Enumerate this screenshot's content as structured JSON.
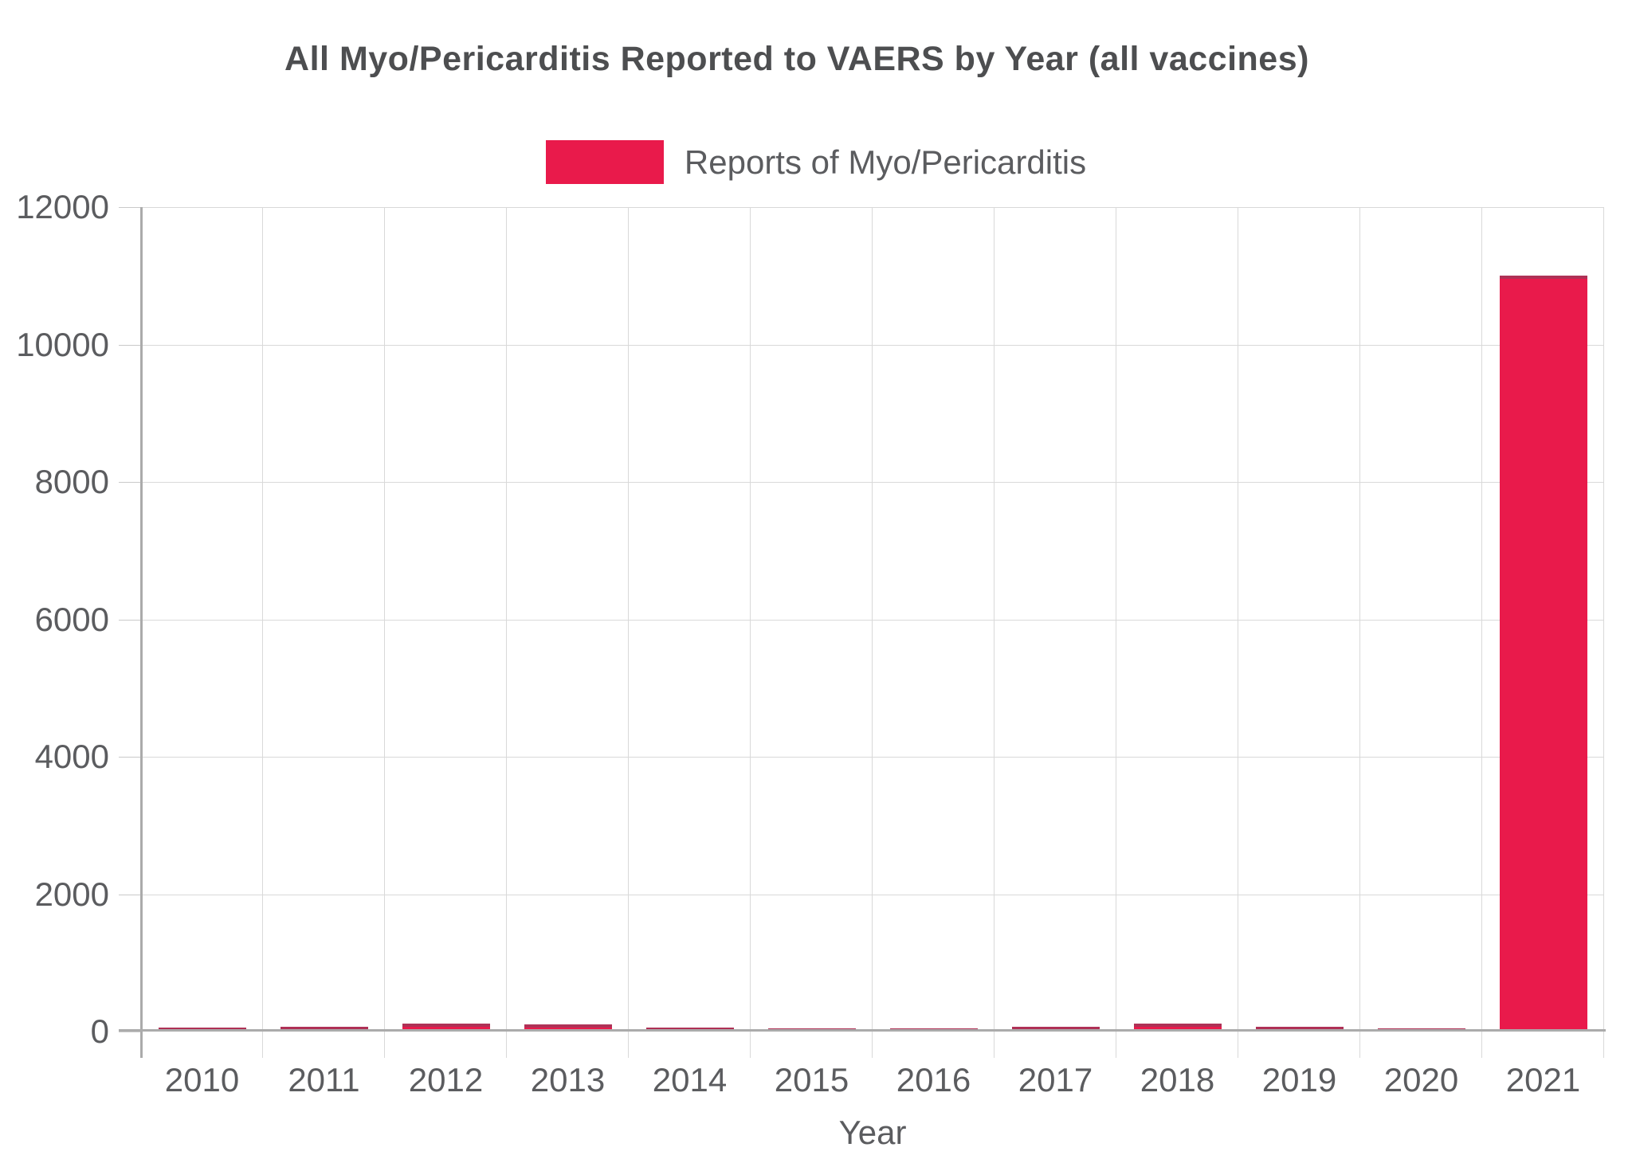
{
  "chart_data": {
    "type": "bar",
    "title": "All Myo/Pericarditis Reported to VAERS by Year (all vaccines)",
    "legend_label": "Reports of Myo/Pericarditis",
    "xlabel": "Year",
    "ylabel": "",
    "categories": [
      "2010",
      "2011",
      "2012",
      "2013",
      "2014",
      "2015",
      "2016",
      "2017",
      "2018",
      "2019",
      "2020",
      "2021"
    ],
    "values": [
      60,
      75,
      115,
      105,
      60,
      35,
      45,
      70,
      115,
      75,
      45,
      11000
    ],
    "ylim": [
      0,
      12000
    ],
    "ytick_step": 2000,
    "ytick_labels": [
      "0",
      "2000",
      "4000",
      "6000",
      "8000",
      "10000",
      "12000"
    ],
    "grid": true,
    "legend_position": "top-center",
    "colors": {
      "bar": "#E91A4B",
      "bar_top_edge": "#AF3156",
      "grid": "#D9D9D9",
      "axis": "#ABABAB",
      "tick": "#C9C9C9",
      "label_text": "#5B5C5F",
      "title_text": "#4D4E50"
    }
  }
}
